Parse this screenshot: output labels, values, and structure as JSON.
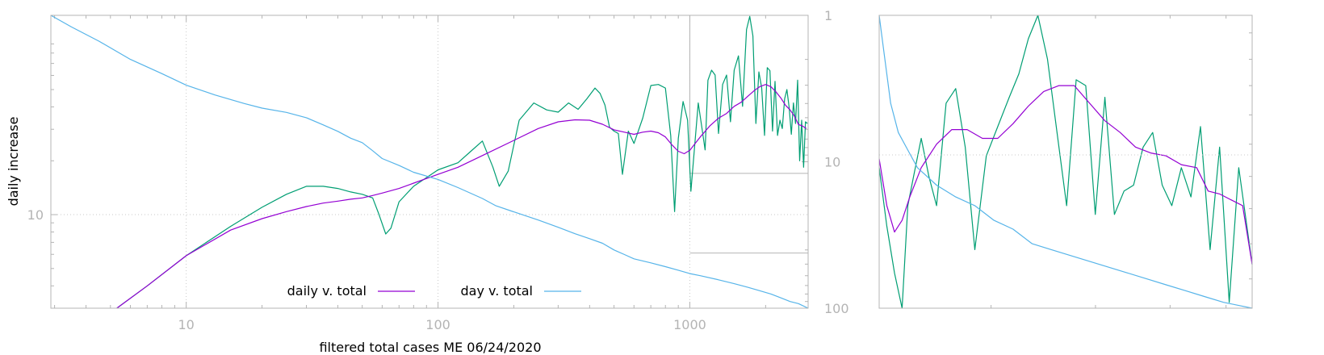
{
  "chart_data": [
    {
      "type": "line",
      "xlabel": "filtered total cases ME 06/24/2020",
      "ylabel": "daily increase",
      "x_scale": "log",
      "xlim": [
        2.9,
        2950
      ],
      "x_ticks": [
        {
          "value": 10,
          "label": "10"
        },
        {
          "value": 100,
          "label": "100"
        },
        {
          "value": 1000,
          "label": "1000"
        }
      ],
      "y_scale": "log",
      "ylim": [
        3.0,
        130
      ],
      "y_ticks": [
        {
          "value": 10,
          "label": "10"
        }
      ],
      "y2_scale": "log",
      "y2_reversed": true,
      "y2lim": [
        1,
        100
      ],
      "y2_ticks": [
        {
          "value": 1,
          "label": "1"
        },
        {
          "value": 10,
          "label": "10"
        },
        {
          "value": 100,
          "label": "100"
        }
      ],
      "grid": true,
      "legend_position": "bottom-center",
      "series": [
        {
          "name": "",
          "color": "#009e73",
          "axis": "left",
          "x": [
            5.3,
            7,
            10,
            15,
            20,
            25,
            30,
            35,
            40,
            45,
            50,
            55,
            58,
            62,
            65,
            70,
            80,
            100,
            120,
            135,
            150,
            165,
            175,
            190,
            210,
            240,
            270,
            300,
            330,
            360,
            390,
            420,
            440,
            460,
            480,
            500,
            520,
            540,
            570,
            600,
            650,
            700,
            750,
            800,
            840,
            870,
            900,
            940,
            980,
            1010,
            1040,
            1080,
            1120,
            1150,
            1180,
            1220,
            1260,
            1300,
            1350,
            1400,
            1450,
            1500,
            1560,
            1620,
            1680,
            1730,
            1780,
            1830,
            1880,
            1930,
            1980,
            2030,
            2080,
            2130,
            2180,
            2230,
            2280,
            2330,
            2380,
            2430,
            2480,
            2530,
            2580,
            2630,
            2680,
            2730,
            2780,
            2830,
            2880,
            2930
          ],
          "y": [
            3.0,
            4.0,
            5.9,
            8.6,
            11.0,
            13.0,
            14.4,
            14.4,
            14.0,
            13.4,
            13.0,
            12.4,
            10.2,
            7.8,
            8.4,
            11.8,
            14.4,
            17.8,
            19.5,
            22.6,
            25.8,
            18.5,
            14.4,
            17.5,
            33.7,
            42.1,
            38.5,
            37.4,
            42.1,
            38.8,
            44.4,
            51.0,
            47.6,
            41.0,
            30.8,
            29.3,
            28.4,
            16.8,
            29.3,
            25.0,
            34.6,
            52.7,
            53.4,
            51.0,
            27.7,
            10.4,
            26.7,
            42.9,
            33.7,
            13.5,
            22.3,
            42.1,
            29.8,
            23.0,
            56.4,
            64.2,
            60.3,
            28.4,
            53.4,
            60.3,
            33.0,
            64.2,
            77.2,
            40.3,
            108.3,
            128.2,
            99.8,
            32.3,
            62.8,
            51.0,
            27.7,
            66.3,
            63.8,
            29.3,
            55.6,
            27.7,
            33.7,
            30.3,
            44.4,
            50.0,
            39.7,
            28.1,
            42.1,
            32.3,
            56.4,
            20.0,
            33.7,
            18.4,
            33.0,
            32.3
          ]
        },
        {
          "name": "daily v. total",
          "color": "#9400d3",
          "axis": "left",
          "x": [
            5.3,
            7,
            10,
            15,
            20,
            25,
            30,
            35,
            40,
            45,
            50,
            55,
            60,
            70,
            80,
            100,
            120,
            150,
            200,
            250,
            300,
            350,
            400,
            450,
            500,
            550,
            600,
            650,
            700,
            750,
            800,
            850,
            900,
            950,
            1000,
            1050,
            1100,
            1200,
            1300,
            1400,
            1500,
            1600,
            1700,
            1800,
            1900,
            2000,
            2100,
            2200,
            2300,
            2400,
            2500,
            2600,
            2700,
            2800,
            2900
          ],
          "y": [
            3.0,
            4.0,
            5.9,
            8.2,
            9.5,
            10.4,
            11.1,
            11.6,
            11.9,
            12.2,
            12.4,
            12.8,
            13.2,
            14.0,
            15.0,
            16.8,
            18.4,
            21.4,
            26.0,
            30.3,
            33.0,
            33.9,
            33.7,
            32.0,
            29.8,
            28.9,
            28.1,
            28.9,
            29.3,
            28.7,
            27.2,
            24.5,
            22.6,
            21.9,
            22.9,
            25.0,
            27.2,
            31.3,
            34.6,
            36.8,
            40.3,
            42.5,
            45.9,
            49.3,
            52.0,
            53.4,
            51.8,
            48.5,
            44.8,
            40.8,
            38.5,
            35.6,
            31.9,
            31.3,
            30.3
          ]
        },
        {
          "name": "day v. total",
          "color": "#56b4e9",
          "axis": "right",
          "x": [
            2.9,
            3.5,
            4.5,
            6,
            8,
            10,
            13,
            17,
            20,
            25,
            30,
            35,
            40,
            45,
            50,
            55,
            60,
            70,
            80,
            100,
            120,
            150,
            170,
            200,
            250,
            300,
            350,
            400,
            450,
            500,
            550,
            600,
            700,
            800,
            900,
            1000,
            1100,
            1300,
            1500,
            1700,
            1900,
            2100,
            2300,
            2500,
            2700,
            2950
          ],
          "y": [
            1.0,
            1.2,
            1.5,
            2.0,
            2.5,
            3.0,
            3.5,
            4.0,
            4.3,
            4.6,
            5.0,
            5.6,
            6.2,
            6.9,
            7.4,
            8.4,
            9.5,
            10.6,
            11.8,
            13.2,
            15.0,
            17.8,
            20.0,
            22.0,
            25.0,
            28.0,
            31.0,
            33.5,
            36.0,
            40.0,
            43.0,
            46.0,
            49.0,
            52.0,
            55.0,
            58.0,
            60.0,
            64.0,
            68.0,
            72.0,
            76.0,
            80.0,
            85.0,
            90.0,
            93.0,
            100.0
          ]
        }
      ],
      "inset_lines": [
        {
          "x0": 1000,
          "x1": 2950,
          "y2": 12.0
        },
        {
          "x0": 1000,
          "x1": 2950,
          "y2": 42.0
        },
        {
          "x": 1000,
          "y2_0": 1,
          "y2_1": 12.0
        }
      ]
    },
    {
      "type": "line",
      "xlabel": "",
      "ylabel": "",
      "xlim": [
        1000,
        2950
      ],
      "grid": false,
      "series": [
        {
          "name": "",
          "color": "#009e73",
          "x": [
            1000,
            1040,
            1080,
            1120,
            1150,
            1180,
            1220,
            1260,
            1300,
            1350,
            1400,
            1450,
            1500,
            1560,
            1620,
            1680,
            1730,
            1780,
            1830,
            1880,
            1930,
            1980,
            2030,
            2080,
            2130,
            2180,
            2230,
            2280,
            2330,
            2380,
            2430,
            2480,
            2530,
            2580,
            2630,
            2680,
            2730,
            2780,
            2830,
            2880,
            2950
          ],
          "y": [
            0.48,
            0.28,
            0.12,
            0.0,
            0.35,
            0.45,
            0.58,
            0.45,
            0.35,
            0.7,
            0.75,
            0.55,
            0.2,
            0.52,
            0.62,
            0.72,
            0.8,
            0.92,
            1.0,
            0.85,
            0.6,
            0.35,
            0.78,
            0.76,
            0.32,
            0.72,
            0.32,
            0.4,
            0.42,
            0.55,
            0.6,
            0.42,
            0.35,
            0.48,
            0.38,
            0.62,
            0.2,
            0.55,
            0.02,
            0.48,
            0.15
          ]
        },
        {
          "name": "",
          "color": "#9400d3",
          "x": [
            1000,
            1040,
            1080,
            1120,
            1160,
            1220,
            1300,
            1380,
            1460,
            1540,
            1620,
            1700,
            1780,
            1860,
            1940,
            2020,
            2100,
            2180,
            2260,
            2340,
            2420,
            2500,
            2580,
            2660,
            2720,
            2780,
            2840,
            2900,
            2950
          ],
          "y": [
            0.51,
            0.35,
            0.26,
            0.3,
            0.38,
            0.48,
            0.56,
            0.61,
            0.61,
            0.58,
            0.58,
            0.63,
            0.69,
            0.74,
            0.76,
            0.76,
            0.7,
            0.64,
            0.6,
            0.55,
            0.53,
            0.52,
            0.49,
            0.48,
            0.4,
            0.39,
            0.37,
            0.35,
            0.15
          ]
        },
        {
          "name": "",
          "color": "#56b4e9",
          "x": [
            1000,
            1020,
            1060,
            1100,
            1150,
            1200,
            1300,
            1400,
            1500,
            1600,
            1700,
            1800,
            1900,
            2000,
            2100,
            2200,
            2300,
            2400,
            2500,
            2600,
            2700,
            2800,
            2950
          ],
          "y": [
            1.0,
            0.9,
            0.7,
            0.6,
            0.54,
            0.48,
            0.42,
            0.38,
            0.35,
            0.3,
            0.27,
            0.22,
            0.2,
            0.18,
            0.16,
            0.14,
            0.12,
            0.1,
            0.08,
            0.06,
            0.04,
            0.02,
            0.0
          ]
        }
      ]
    }
  ]
}
